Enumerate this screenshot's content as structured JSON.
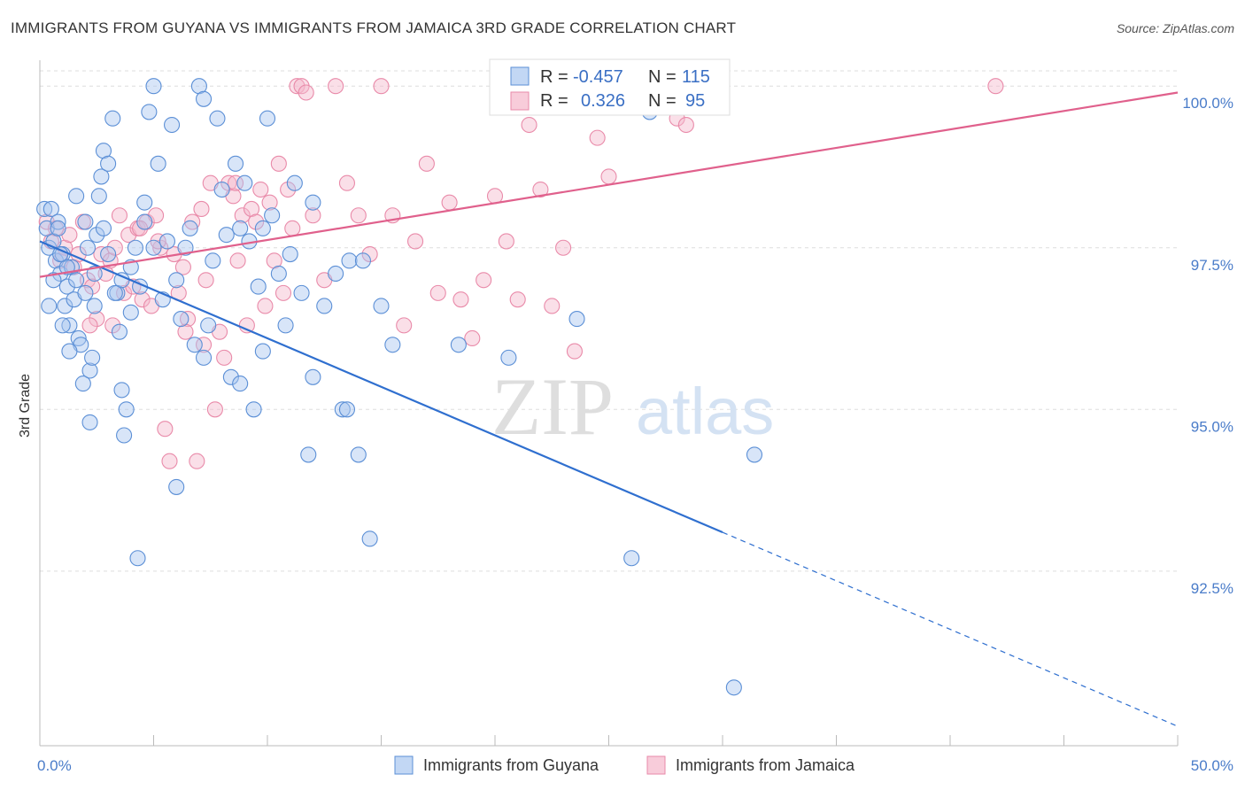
{
  "header": {
    "title": "IMMIGRANTS FROM GUYANA VS IMMIGRANTS FROM JAMAICA 3RD GRADE CORRELATION CHART",
    "source": "Source: ZipAtlas.com"
  },
  "watermark": {
    "zip": "ZIP",
    "atlas": "atlas"
  },
  "colors": {
    "guyana_fill": "#a8c6f0",
    "guyana_stroke": "#5b8fd6",
    "guyana_line": "#2f6fcf",
    "jamaica_fill": "#f5b7cb",
    "jamaica_stroke": "#e98aa9",
    "jamaica_line": "#e0608c",
    "grid": "#dddddd",
    "tick_text": "#4a7cc9"
  },
  "chart_data": {
    "type": "scatter",
    "title": "IMMIGRANTS FROM GUYANA VS IMMIGRANTS FROM JAMAICA 3RD GRADE CORRELATION CHART",
    "xlabel": "",
    "ylabel": "3rd Grade",
    "xlim": [
      0,
      50
    ],
    "ylim": [
      89.8,
      100.4
    ],
    "x_tick_labels": [
      "0.0%",
      "50.0%"
    ],
    "y_ticks": [
      92.5,
      95.0,
      97.5,
      100.0
    ],
    "y_tick_labels": [
      "92.5%",
      "95.0%",
      "97.5%",
      "100.0%"
    ],
    "grid": true,
    "legend_position": "top-center",
    "legend": [
      {
        "r_label": "R = ",
        "r": "-0.457",
        "n_label": "N = ",
        "n": "115"
      },
      {
        "r_label": "R = ",
        "r": "0.326",
        "n_label": "N = ",
        "n": "95"
      }
    ],
    "series": [
      {
        "name": "Immigrants from Guyana",
        "trend": {
          "x": [
            0,
            30
          ],
          "y": [
            97.6,
            93.1
          ],
          "dashed_to": [
            50,
            90.1
          ]
        },
        "points": [
          [
            0.2,
            98.1
          ],
          [
            0.3,
            97.8
          ],
          [
            0.4,
            97.5
          ],
          [
            0.5,
            98.1
          ],
          [
            0.6,
            97.6
          ],
          [
            0.7,
            97.3
          ],
          [
            0.8,
            97.9
          ],
          [
            0.9,
            97.1
          ],
          [
            1.0,
            97.4
          ],
          [
            1.1,
            96.6
          ],
          [
            1.2,
            96.9
          ],
          [
            1.3,
            96.3
          ],
          [
            1.4,
            97.2
          ],
          [
            1.5,
            96.7
          ],
          [
            1.6,
            97.0
          ],
          [
            1.7,
            96.1
          ],
          [
            1.8,
            96.0
          ],
          [
            1.9,
            95.4
          ],
          [
            2.0,
            96.8
          ],
          [
            2.1,
            97.5
          ],
          [
            2.2,
            95.6
          ],
          [
            2.3,
            95.8
          ],
          [
            2.4,
            96.6
          ],
          [
            2.5,
            97.7
          ],
          [
            2.6,
            98.3
          ],
          [
            2.7,
            98.6
          ],
          [
            2.8,
            99.0
          ],
          [
            3.0,
            98.8
          ],
          [
            3.2,
            99.5
          ],
          [
            3.4,
            96.8
          ],
          [
            3.5,
            96.2
          ],
          [
            3.6,
            95.3
          ],
          [
            3.7,
            94.6
          ],
          [
            3.8,
            95.0
          ],
          [
            4.0,
            97.2
          ],
          [
            4.2,
            97.5
          ],
          [
            4.4,
            96.9
          ],
          [
            4.6,
            97.9
          ],
          [
            4.8,
            99.6
          ],
          [
            5.0,
            100.0
          ],
          [
            5.2,
            98.8
          ],
          [
            5.4,
            96.7
          ],
          [
            5.6,
            97.6
          ],
          [
            5.8,
            99.4
          ],
          [
            6.0,
            97.0
          ],
          [
            6.2,
            96.4
          ],
          [
            6.4,
            97.5
          ],
          [
            6.6,
            97.8
          ],
          [
            6.8,
            96.0
          ],
          [
            7.0,
            100.0
          ],
          [
            7.2,
            99.8
          ],
          [
            7.4,
            96.3
          ],
          [
            7.6,
            97.3
          ],
          [
            7.8,
            99.5
          ],
          [
            8.0,
            98.4
          ],
          [
            8.2,
            97.7
          ],
          [
            8.4,
            95.5
          ],
          [
            8.6,
            98.8
          ],
          [
            8.8,
            97.8
          ],
          [
            9.0,
            98.5
          ],
          [
            9.2,
            97.6
          ],
          [
            9.4,
            95.0
          ],
          [
            9.6,
            96.9
          ],
          [
            9.8,
            97.8
          ],
          [
            10.0,
            99.5
          ],
          [
            10.2,
            98.0
          ],
          [
            10.5,
            97.1
          ],
          [
            10.8,
            96.3
          ],
          [
            11.0,
            97.4
          ],
          [
            11.2,
            98.5
          ],
          [
            11.5,
            96.8
          ],
          [
            11.8,
            94.3
          ],
          [
            12.0,
            95.5
          ],
          [
            12.5,
            96.6
          ],
          [
            13.0,
            97.1
          ],
          [
            13.3,
            95.0
          ],
          [
            13.6,
            97.3
          ],
          [
            14.0,
            94.3
          ],
          [
            14.5,
            93.0
          ],
          [
            15.0,
            96.6
          ],
          [
            4.3,
            92.7
          ],
          [
            6.0,
            93.8
          ],
          [
            7.2,
            95.8
          ],
          [
            8.8,
            95.4
          ],
          [
            2.2,
            94.8
          ],
          [
            1.0,
            96.3
          ],
          [
            0.6,
            97.0
          ],
          [
            0.4,
            96.6
          ],
          [
            0.8,
            97.8
          ],
          [
            1.2,
            97.2
          ],
          [
            1.6,
            98.3
          ],
          [
            2.0,
            97.9
          ],
          [
            2.4,
            97.1
          ],
          [
            3.0,
            97.4
          ],
          [
            3.6,
            97.0
          ],
          [
            4.0,
            96.5
          ],
          [
            4.6,
            98.2
          ],
          [
            5.0,
            97.5
          ],
          [
            9.8,
            95.9
          ],
          [
            12.0,
            98.2
          ],
          [
            13.5,
            95.0
          ],
          [
            14.2,
            97.3
          ],
          [
            15.5,
            96.0
          ],
          [
            18.4,
            96.0
          ],
          [
            20.6,
            95.8
          ],
          [
            23.6,
            96.4
          ],
          [
            26.0,
            92.7
          ],
          [
            26.5,
            100.0
          ],
          [
            26.8,
            99.6
          ],
          [
            31.4,
            94.3
          ],
          [
            30.5,
            90.7
          ],
          [
            1.3,
            95.9
          ],
          [
            2.8,
            97.8
          ],
          [
            3.3,
            96.8
          ],
          [
            0.9,
            97.4
          ]
        ]
      },
      {
        "name": "Immigrants from Jamaica",
        "trend": {
          "x": [
            0,
            50
          ],
          "y": [
            97.05,
            99.9
          ]
        },
        "points": [
          [
            0.3,
            97.9
          ],
          [
            0.5,
            97.6
          ],
          [
            0.7,
            97.8
          ],
          [
            0.9,
            97.3
          ],
          [
            1.1,
            97.5
          ],
          [
            1.3,
            97.7
          ],
          [
            1.5,
            97.2
          ],
          [
            1.7,
            97.4
          ],
          [
            1.9,
            97.9
          ],
          [
            2.1,
            97.0
          ],
          [
            2.3,
            96.9
          ],
          [
            2.5,
            96.4
          ],
          [
            2.7,
            97.4
          ],
          [
            2.9,
            97.1
          ],
          [
            3.1,
            97.3
          ],
          [
            3.3,
            97.5
          ],
          [
            3.5,
            98.0
          ],
          [
            3.7,
            96.8
          ],
          [
            3.9,
            97.7
          ],
          [
            4.1,
            96.9
          ],
          [
            4.3,
            97.8
          ],
          [
            4.5,
            96.7
          ],
          [
            4.7,
            97.9
          ],
          [
            4.9,
            96.6
          ],
          [
            5.1,
            98.0
          ],
          [
            5.3,
            97.5
          ],
          [
            5.5,
            94.7
          ],
          [
            5.7,
            94.2
          ],
          [
            5.9,
            97.4
          ],
          [
            6.1,
            96.8
          ],
          [
            6.3,
            97.2
          ],
          [
            6.5,
            96.4
          ],
          [
            6.7,
            97.9
          ],
          [
            6.9,
            94.2
          ],
          [
            7.1,
            98.1
          ],
          [
            7.3,
            97.0
          ],
          [
            7.5,
            98.5
          ],
          [
            7.7,
            95.0
          ],
          [
            7.9,
            96.2
          ],
          [
            8.1,
            95.8
          ],
          [
            8.3,
            98.5
          ],
          [
            8.5,
            98.3
          ],
          [
            8.7,
            97.3
          ],
          [
            8.9,
            98.0
          ],
          [
            9.1,
            96.3
          ],
          [
            9.3,
            98.1
          ],
          [
            9.5,
            97.9
          ],
          [
            9.7,
            98.4
          ],
          [
            9.9,
            96.6
          ],
          [
            10.1,
            98.2
          ],
          [
            10.3,
            97.3
          ],
          [
            10.5,
            98.8
          ],
          [
            10.7,
            96.8
          ],
          [
            10.9,
            98.4
          ],
          [
            11.1,
            97.8
          ],
          [
            11.3,
            100.0
          ],
          [
            11.5,
            100.0
          ],
          [
            11.7,
            99.9
          ],
          [
            12.0,
            98.0
          ],
          [
            12.5,
            97.0
          ],
          [
            13.0,
            100.0
          ],
          [
            13.5,
            98.5
          ],
          [
            14.0,
            98.0
          ],
          [
            14.5,
            97.4
          ],
          [
            15.0,
            100.0
          ],
          [
            15.5,
            98.0
          ],
          [
            16.0,
            96.3
          ],
          [
            16.5,
            97.6
          ],
          [
            17.0,
            98.8
          ],
          [
            17.5,
            96.8
          ],
          [
            18.0,
            98.2
          ],
          [
            18.5,
            96.7
          ],
          [
            19.0,
            96.1
          ],
          [
            19.5,
            97.0
          ],
          [
            20.0,
            98.3
          ],
          [
            20.5,
            97.6
          ],
          [
            21.0,
            96.7
          ],
          [
            21.5,
            99.4
          ],
          [
            22.0,
            98.4
          ],
          [
            22.5,
            96.6
          ],
          [
            23.0,
            97.5
          ],
          [
            23.5,
            95.9
          ],
          [
            24.0,
            100.0
          ],
          [
            24.5,
            99.2
          ],
          [
            25.0,
            98.6
          ],
          [
            28.0,
            99.5
          ],
          [
            28.4,
            99.4
          ],
          [
            42.0,
            100.0
          ],
          [
            2.2,
            96.3
          ],
          [
            3.2,
            96.3
          ],
          [
            4.4,
            97.8
          ],
          [
            5.2,
            97.6
          ],
          [
            6.4,
            96.2
          ],
          [
            7.2,
            96.0
          ],
          [
            8.6,
            98.5
          ]
        ]
      }
    ]
  }
}
